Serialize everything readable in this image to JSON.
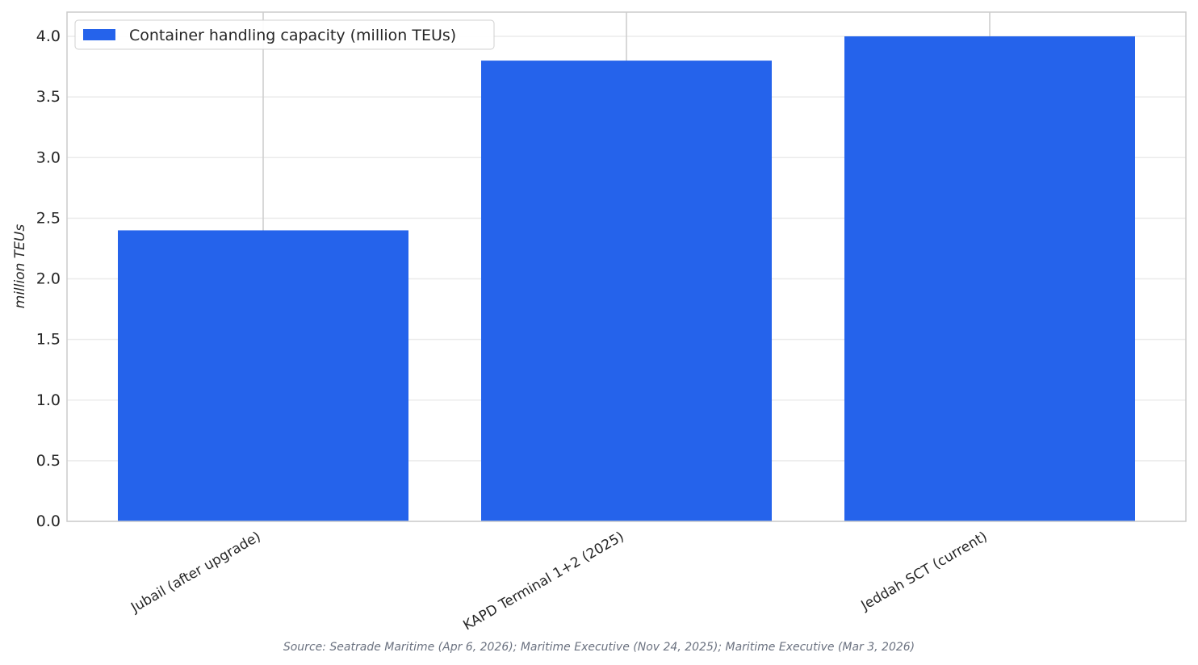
{
  "chart_data": {
    "type": "bar",
    "y_label": "million TEUs",
    "source": "Source: Seatrade Maritime (Apr 6, 2026); Maritime Executive (Nov 24, 2025); Maritime Executive (Mar 3, 2026)",
    "categories": [
      "Jubail (after upgrade)",
      "KAPD Terminal 1+2 (2025)",
      "Jeddah SCT (current)"
    ],
    "series": [
      {
        "name": "Container handling capacity (million TEUs)",
        "color": "#2563eb",
        "values": [
          2.4,
          3.8,
          4.0
        ]
      }
    ],
    "ylim": [
      0,
      4.2
    ],
    "yticks": [
      {
        "value": 0,
        "label": "0.0"
      },
      0.5,
      {
        "value": 1,
        "label": "1.0"
      },
      1.5,
      {
        "value": 2,
        "label": "2.0"
      },
      2.5,
      {
        "value": 3,
        "label": "3.0"
      },
      3.5,
      {
        "value": 4,
        "label": "4.0"
      }
    ],
    "grid": true,
    "legend": "upper-left"
  }
}
